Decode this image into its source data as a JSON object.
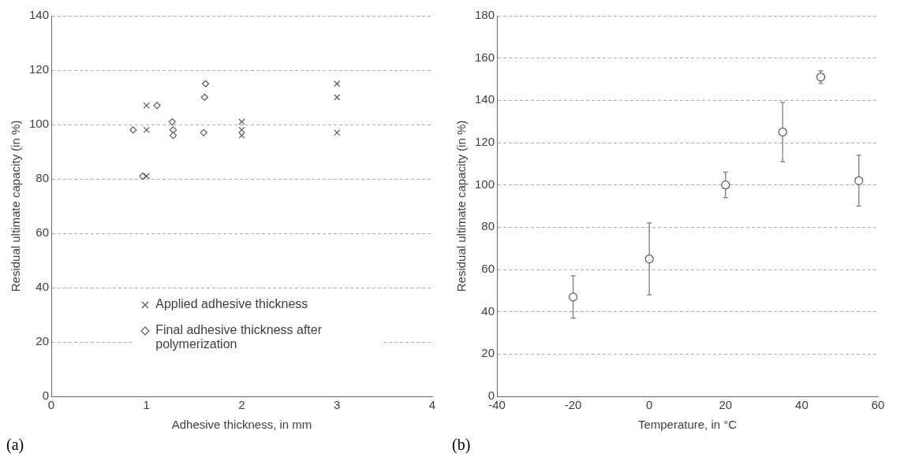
{
  "chart_data": [
    {
      "type": "scatter",
      "xlabel": "Adhesive thickness, in mm",
      "ylabel": "Residual ultimate capacity (in %)",
      "xlim": [
        0,
        4
      ],
      "xticks": [
        0,
        1,
        2,
        3,
        4
      ],
      "ylim": [
        0,
        140
      ],
      "yticks": [
        0,
        20,
        40,
        60,
        80,
        100,
        120,
        140
      ],
      "grid": "y",
      "legend": "bottom",
      "annotations": [
        "(a)"
      ],
      "series": [
        {
          "name": "Applied adhesive thickness",
          "color": "#595959",
          "marker": "cross",
          "x": [
            1,
            1,
            1,
            2,
            2,
            2,
            3,
            3,
            3
          ],
          "values": [
            107,
            98,
            81,
            101,
            98,
            96,
            115,
            110,
            97
          ]
        },
        {
          "name": "Final adhesive thickness after polymerization",
          "color": "#595959",
          "marker": "diamond",
          "x": [
            0.86,
            1.11,
            1.27,
            1.28,
            1.28,
            1.62,
            1.61,
            1.6,
            0.96
          ],
          "values": [
            98,
            107,
            101,
            98,
            96,
            115,
            110,
            97,
            81
          ]
        }
      ]
    },
    {
      "type": "scatter",
      "xlabel": "Temperature, in °C",
      "ylabel": "Residual ultimate capacity (in %)",
      "xlim": [
        -40,
        60
      ],
      "xticks": [
        -40,
        -20,
        0,
        20,
        40,
        60
      ],
      "ylim": [
        0,
        180
      ],
      "yticks": [
        0,
        20,
        40,
        60,
        80,
        100,
        120,
        140,
        160,
        180
      ],
      "grid": "y",
      "annotations": [
        "(b)"
      ],
      "series": [
        {
          "color": "#595959",
          "marker": "circle",
          "x": [
            -20,
            0,
            20,
            35,
            45,
            55
          ],
          "values": [
            47,
            65,
            100,
            125,
            151,
            102
          ],
          "errors": [
            10,
            17,
            6,
            14,
            3,
            12
          ]
        }
      ]
    }
  ]
}
